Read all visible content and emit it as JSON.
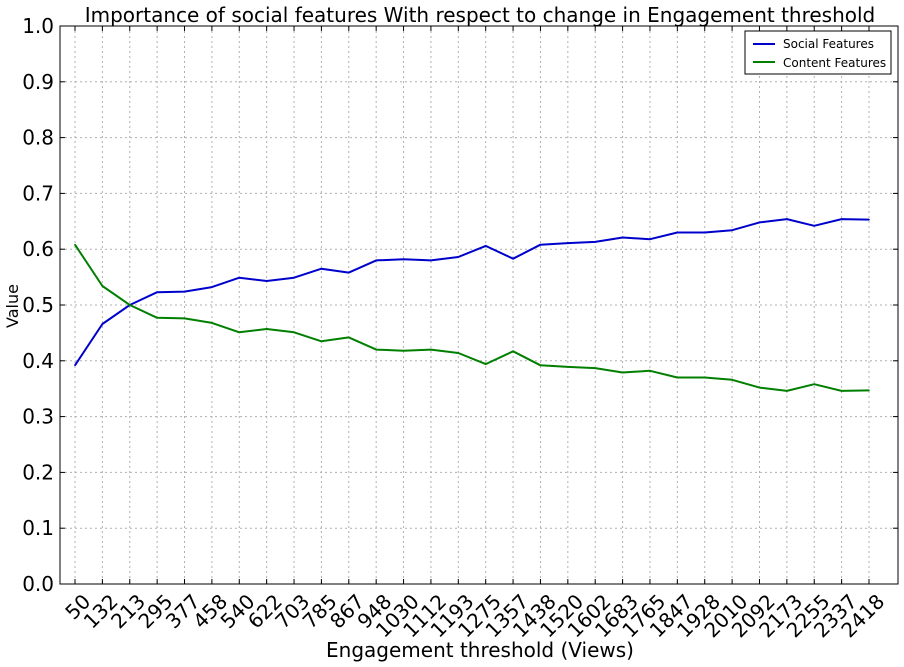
{
  "chart_data": {
    "type": "line",
    "title": "Importance of social features With respect to change in Engagement threshold",
    "xlabel": "Engagement threshold (Views)",
    "ylabel": "Value",
    "ylim": [
      0.0,
      1.0
    ],
    "yticks": [
      "0.0",
      "0.1",
      "0.2",
      "0.3",
      "0.4",
      "0.5",
      "0.6",
      "0.7",
      "0.8",
      "0.9",
      "1.0"
    ],
    "x": [
      "50",
      "132",
      "213",
      "295",
      "377",
      "458",
      "540",
      "622",
      "703",
      "785",
      "867",
      "948",
      "1030",
      "1112",
      "1193",
      "1275",
      "1357",
      "1438",
      "1520",
      "1602",
      "1683",
      "1765",
      "1847",
      "1928",
      "2010",
      "2092",
      "2173",
      "2255",
      "2337",
      "2418"
    ],
    "grid": true,
    "legend_position": "top-right",
    "series": [
      {
        "name": "Social Features",
        "color": "#0000cc",
        "values": [
          0.392,
          0.466,
          0.5,
          0.523,
          0.524,
          0.532,
          0.549,
          0.543,
          0.549,
          0.565,
          0.558,
          0.58,
          0.582,
          0.58,
          0.586,
          0.606,
          0.583,
          0.608,
          0.611,
          0.613,
          0.621,
          0.618,
          0.63,
          0.63,
          0.634,
          0.648,
          0.654,
          0.642,
          0.654,
          0.653
        ]
      },
      {
        "name": "Content Features",
        "color": "#007f00",
        "values": [
          0.608,
          0.534,
          0.5,
          0.477,
          0.476,
          0.468,
          0.451,
          0.457,
          0.451,
          0.435,
          0.442,
          0.42,
          0.418,
          0.42,
          0.414,
          0.394,
          0.417,
          0.392,
          0.389,
          0.387,
          0.379,
          0.382,
          0.37,
          0.37,
          0.366,
          0.352,
          0.346,
          0.358,
          0.346,
          0.347
        ]
      }
    ]
  }
}
